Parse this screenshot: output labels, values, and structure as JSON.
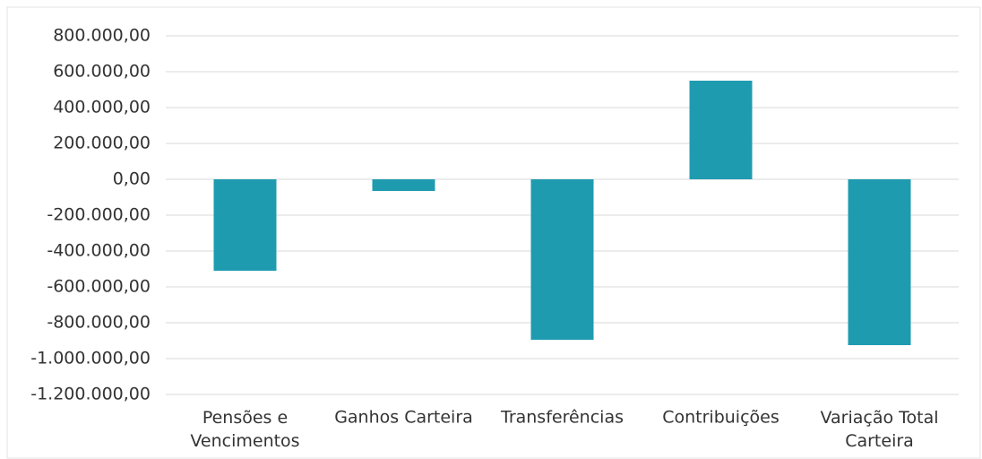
{
  "chart_data": {
    "type": "bar",
    "categories": [
      "Pensões e Vencimentos",
      "Ganhos Carteira",
      "Transferências",
      "Contribuições",
      "Variação Total Carteira"
    ],
    "values": [
      -510000,
      -65000,
      -895000,
      550000,
      -925000
    ],
    "color": "#1f9bb0",
    "ylim": [
      -1200000,
      800000
    ],
    "yticks": [
      {
        "value": -1200000,
        "label": "-1.200.000,00"
      },
      {
        "value": -1000000,
        "label": "-1.000.000,00"
      },
      {
        "value": -800000,
        "label": "-800.000,00"
      },
      {
        "value": -600000,
        "label": "-600.000,00"
      },
      {
        "value": -400000,
        "label": "-400.000,00"
      },
      {
        "value": -200000,
        "label": "-200.000,00"
      },
      {
        "value": 0,
        "label": "0,00"
      },
      {
        "value": 200000,
        "label": "200.000,00"
      },
      {
        "value": 400000,
        "label": "400.000,00"
      },
      {
        "value": 600000,
        "label": "600.000,00"
      },
      {
        "value": 800000,
        "label": "800.000,00"
      }
    ],
    "grid": true
  }
}
